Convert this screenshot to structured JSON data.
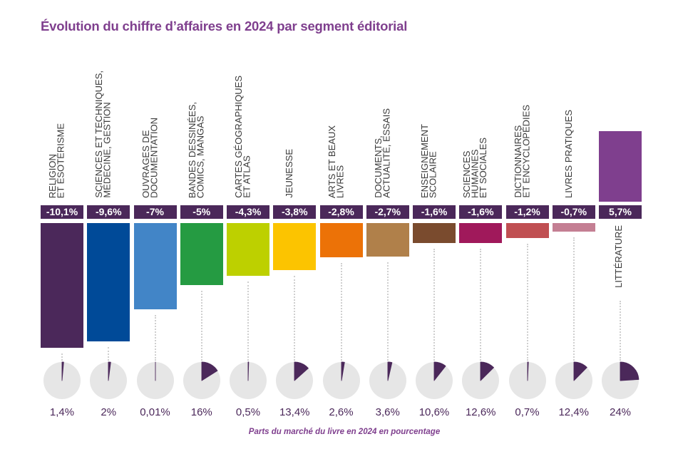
{
  "chart_data": {
    "type": "bar",
    "title": "Évolution du chiffre d’affaires en 2024 par segment éditorial",
    "subtitle": "Parts du marché du livre en 2024 en pourcentage",
    "xlabel": "",
    "ylabel": "",
    "ylim": [
      -10.1,
      5.7
    ],
    "grid": false,
    "legend": "none",
    "categories": [
      [
        "RELIGION",
        "ET ÉSOTÉRISME"
      ],
      [
        "SCIENCES ET TECHNIQUES,",
        "MÉDECINE, GESTION"
      ],
      [
        "OUVRAGES DE",
        "DOCUMENTATION"
      ],
      [
        "BANDES DESSINÉES,",
        "COMICS, MANGAS"
      ],
      [
        "CARTES GÉOGRAPHIQUES",
        "ET ATLAS"
      ],
      [
        "JEUNESSE"
      ],
      [
        "ARTS ET BEAUX",
        "LIVRES"
      ],
      [
        "DOCUMENTS,",
        "ACTUALITÉ, ESSAIS"
      ],
      [
        "ENSEIGNEMENT",
        "SCOLAIRE"
      ],
      [
        "SCIENCES",
        "HUMAINES",
        "ET SOCIALES"
      ],
      [
        "DICTIONNAIRES",
        "ET ENCYCLOPÉDIES"
      ],
      [
        "LIVRES PRATIQUES"
      ],
      [
        "LITTÉRATURE"
      ]
    ],
    "series": [
      {
        "name": "Évolution du chiffre d’affaires en 2024 (%)",
        "type": "bar",
        "values": [
          -10.1,
          -9.6,
          -7,
          -5,
          -4.3,
          -3.8,
          -2.8,
          -2.7,
          -1.6,
          -1.6,
          -1.2,
          -0.7,
          5.7
        ],
        "labels": [
          "-10,1%",
          "-9,6%",
          "-7%",
          "-5%",
          "-4,3%",
          "-3,8%",
          "-2,8%",
          "-2,7%",
          "-1,6%",
          "-1,6%",
          "-1,2%",
          "-0,7%",
          "5,7%"
        ]
      },
      {
        "name": "Parts du marché du livre en 2024 (%)",
        "type": "pie",
        "values": [
          1.4,
          2,
          0.01,
          16,
          0.5,
          13.4,
          2.6,
          3.6,
          10.6,
          12.6,
          0.7,
          12.4,
          24
        ],
        "labels": [
          "1,4%",
          "2%",
          "0,01%",
          "16%",
          "0,5%",
          "13,4%",
          "2,6%",
          "3,6%",
          "10,6%",
          "12,6%",
          "0,7%",
          "12,4%",
          "24%"
        ]
      }
    ],
    "colors": [
      "#4B285A",
      "#004A98",
      "#4285C7",
      "#259B42",
      "#BDD000",
      "#FCC400",
      "#EC7207",
      "#B0804A",
      "#7A4B2E",
      "#A0195B",
      "#C04F52",
      "#C47F93",
      "#7F3F8E"
    ],
    "label_box_color": "#4B285A",
    "pie_background_color": "#E6E6E6",
    "pie_slice_color": "#4B285A",
    "accent_color": "#7F3F8E"
  }
}
